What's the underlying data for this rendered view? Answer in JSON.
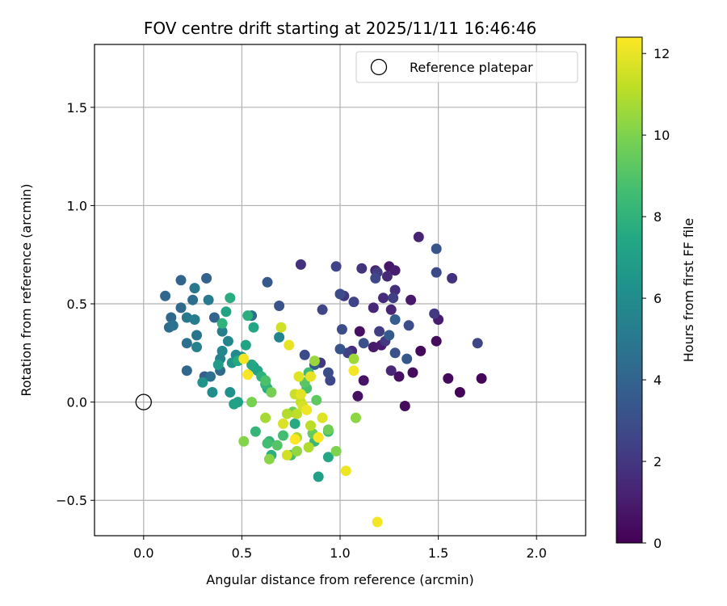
{
  "chart_data": {
    "type": "scatter",
    "title": "FOV centre drift starting at 2025/11/11 16:46:46",
    "xlabel": "Angular distance from reference (arcmin)",
    "ylabel": "Rotation from reference (arcmin)",
    "xlim": [
      -0.25,
      2.25
    ],
    "ylim": [
      -0.68,
      1.82
    ],
    "xticks": [
      0.0,
      0.5,
      1.0,
      1.5,
      2.0
    ],
    "xtick_labels": [
      "0.0",
      "0.5",
      "1.0",
      "1.5",
      "2.0"
    ],
    "yticks": [
      -0.5,
      0.0,
      0.5,
      1.0,
      1.5
    ],
    "ytick_labels": [
      "−0.5",
      "0.0",
      "0.5",
      "1.0",
      "1.5"
    ],
    "grid": true,
    "colorbar": {
      "label": "Hours from first FF file",
      "range": [
        0,
        12.4
      ],
      "colormap": "viridis",
      "ticks": [
        0,
        2,
        4,
        6,
        8,
        10,
        12
      ],
      "tick_labels": [
        "0",
        "2",
        "4",
        "6",
        "8",
        "10",
        "12"
      ]
    },
    "legend": {
      "placement": "top-right",
      "entries": [
        {
          "label": "Reference platepar",
          "marker": "open-circle"
        }
      ]
    },
    "reference": {
      "x": 0.0,
      "y": 0.0
    },
    "points": [
      [
        1.72,
        0.12,
        0.2
      ],
      [
        1.61,
        0.05,
        0.1
      ],
      [
        1.55,
        0.12,
        0.3
      ],
      [
        1.33,
        -0.02,
        0.4
      ],
      [
        1.41,
        0.26,
        0.3
      ],
      [
        1.37,
        0.15,
        0.4
      ],
      [
        1.3,
        0.13,
        0.5
      ],
      [
        1.49,
        0.31,
        0.4
      ],
      [
        1.1,
        0.36,
        0.5
      ],
      [
        1.09,
        0.03,
        0.6
      ],
      [
        1.12,
        0.11,
        0.7
      ],
      [
        1.25,
        0.69,
        0.8
      ],
      [
        1.36,
        0.52,
        0.8
      ],
      [
        1.17,
        0.28,
        0.9
      ],
      [
        1.5,
        0.42,
        1.0
      ],
      [
        1.21,
        0.29,
        1.0
      ],
      [
        1.28,
        0.67,
        1.1
      ],
      [
        1.4,
        0.84,
        1.2
      ],
      [
        1.18,
        0.67,
        1.2
      ],
      [
        1.26,
        0.47,
        1.3
      ],
      [
        1.26,
        0.16,
        1.4
      ],
      [
        1.17,
        0.48,
        1.4
      ],
      [
        1.24,
        0.64,
        1.5
      ],
      [
        1.06,
        0.26,
        1.6
      ],
      [
        1.22,
        0.53,
        1.6
      ],
      [
        1.28,
        0.57,
        1.7
      ],
      [
        0.8,
        0.7,
        1.8
      ],
      [
        1.57,
        0.63,
        1.8
      ],
      [
        1.11,
        0.68,
        1.9
      ],
      [
        1.02,
        0.54,
        2.0
      ],
      [
        0.9,
        0.2,
        2.0
      ],
      [
        1.23,
        0.31,
        2.1
      ],
      [
        1.48,
        0.45,
        2.1
      ],
      [
        1.19,
        0.66,
        2.2
      ],
      [
        1.2,
        0.36,
        2.3
      ],
      [
        1.27,
        0.53,
        2.3
      ],
      [
        1.04,
        0.25,
        2.4
      ],
      [
        0.98,
        0.69,
        2.5
      ],
      [
        1.07,
        0.51,
        2.5
      ],
      [
        1.7,
        0.3,
        2.6
      ],
      [
        0.91,
        0.47,
        2.6
      ],
      [
        1.18,
        0.63,
        2.7
      ],
      [
        0.95,
        0.11,
        2.7
      ],
      [
        1.49,
        0.66,
        2.8
      ],
      [
        0.82,
        0.24,
        2.8
      ],
      [
        1.0,
        0.55,
        2.9
      ],
      [
        1.01,
        0.37,
        2.9
      ],
      [
        1.35,
        0.39,
        3.0
      ],
      [
        0.94,
        0.15,
        3.0
      ],
      [
        1.12,
        0.3,
        3.1
      ],
      [
        1.28,
        0.25,
        3.1
      ],
      [
        0.69,
        0.49,
        3.2
      ],
      [
        1.49,
        0.78,
        3.3
      ],
      [
        1.0,
        0.27,
        3.3
      ],
      [
        1.34,
        0.22,
        3.4
      ],
      [
        0.63,
        0.61,
        3.5
      ],
      [
        1.25,
        0.34,
        3.6
      ],
      [
        0.87,
        0.19,
        3.6
      ],
      [
        1.28,
        0.42,
        3.7
      ],
      [
        0.31,
        0.13,
        3.8
      ],
      [
        0.32,
        0.63,
        3.9
      ],
      [
        0.19,
        0.62,
        4.0
      ],
      [
        0.36,
        0.43,
        4.0
      ],
      [
        0.11,
        0.54,
        4.1
      ],
      [
        0.22,
        0.16,
        4.1
      ],
      [
        0.14,
        0.43,
        4.2
      ],
      [
        0.39,
        0.16,
        4.3
      ],
      [
        0.19,
        0.48,
        4.3
      ],
      [
        0.13,
        0.38,
        4.4
      ],
      [
        0.55,
        0.44,
        4.5
      ],
      [
        0.25,
        0.52,
        4.5
      ],
      [
        0.34,
        0.13,
        4.6
      ],
      [
        0.22,
        0.3,
        4.6
      ],
      [
        0.15,
        0.39,
        4.7
      ],
      [
        0.27,
        0.34,
        4.8
      ],
      [
        0.26,
        0.58,
        4.9
      ],
      [
        0.22,
        0.43,
        5.0
      ],
      [
        0.33,
        0.52,
        5.1
      ],
      [
        0.26,
        0.42,
        5.2
      ],
      [
        0.4,
        0.36,
        5.3
      ],
      [
        0.27,
        0.28,
        5.4
      ],
      [
        0.39,
        0.22,
        5.5
      ],
      [
        0.69,
        0.33,
        5.6
      ],
      [
        0.43,
        0.31,
        5.7
      ],
      [
        0.4,
        0.26,
        5.8
      ],
      [
        0.47,
        0.24,
        5.9
      ],
      [
        0.35,
        0.05,
        6.0
      ],
      [
        0.5,
        0.23,
        6.1
      ],
      [
        0.44,
        0.05,
        6.3
      ],
      [
        0.3,
        0.1,
        6.4
      ],
      [
        0.45,
        0.2,
        6.5
      ],
      [
        0.56,
        0.18,
        6.6
      ],
      [
        0.38,
        0.19,
        6.8
      ],
      [
        0.46,
        -0.01,
        7.0
      ],
      [
        0.89,
        -0.38,
        7.0
      ],
      [
        0.48,
        0.0,
        7.1
      ],
      [
        0.52,
        0.29,
        7.2
      ],
      [
        0.42,
        0.46,
        7.3
      ],
      [
        0.58,
        0.16,
        7.3
      ],
      [
        0.55,
        0.19,
        7.4
      ],
      [
        0.56,
        0.38,
        7.4
      ],
      [
        0.63,
        0.07,
        7.5
      ],
      [
        0.94,
        -0.28,
        7.5
      ],
      [
        0.48,
        0.21,
        7.6
      ],
      [
        0.77,
        -0.11,
        7.6
      ],
      [
        0.44,
        0.53,
        7.7
      ],
      [
        0.65,
        -0.27,
        7.8
      ],
      [
        0.53,
        0.44,
        7.8
      ],
      [
        0.6,
        0.13,
        7.9
      ],
      [
        0.4,
        0.4,
        8.0
      ],
      [
        0.64,
        -0.2,
        8.1
      ],
      [
        0.62,
        0.09,
        8.1
      ],
      [
        0.57,
        -0.15,
        8.2
      ],
      [
        0.87,
        -0.2,
        8.3
      ],
      [
        0.94,
        -0.15,
        8.4
      ],
      [
        0.84,
        0.15,
        8.5
      ],
      [
        0.63,
        -0.21,
        8.6
      ],
      [
        0.71,
        -0.17,
        8.6
      ],
      [
        0.75,
        -0.27,
        8.7
      ],
      [
        0.83,
        0.07,
        8.8
      ],
      [
        0.62,
        0.11,
        8.9
      ],
      [
        0.68,
        -0.22,
        9.1
      ],
      [
        0.82,
        0.1,
        9.2
      ],
      [
        0.88,
        0.01,
        9.3
      ],
      [
        0.86,
        -0.16,
        9.5
      ],
      [
        0.76,
        -0.05,
        9.6
      ],
      [
        0.94,
        -0.14,
        9.7
      ],
      [
        0.65,
        0.05,
        9.8
      ],
      [
        0.55,
        0.0,
        9.9
      ],
      [
        0.98,
        -0.25,
        10.0
      ],
      [
        0.51,
        -0.2,
        10.1
      ],
      [
        0.64,
        -0.29,
        10.2
      ],
      [
        1.08,
        -0.08,
        10.3
      ],
      [
        0.78,
        -0.25,
        10.4
      ],
      [
        0.87,
        0.21,
        10.5
      ],
      [
        1.07,
        0.22,
        10.6
      ],
      [
        0.62,
        -0.08,
        10.7
      ],
      [
        0.78,
        -0.18,
        10.8
      ],
      [
        0.84,
        -0.23,
        10.9
      ],
      [
        0.73,
        -0.06,
        11.0
      ],
      [
        0.85,
        -0.12,
        11.1
      ],
      [
        0.78,
        -0.06,
        11.2
      ],
      [
        0.8,
        0.0,
        11.3
      ],
      [
        0.77,
        0.04,
        11.4
      ],
      [
        0.7,
        0.38,
        11.5
      ],
      [
        0.73,
        -0.27,
        11.5
      ],
      [
        0.81,
        -0.02,
        11.6
      ],
      [
        0.71,
        -0.11,
        11.7
      ],
      [
        0.79,
        0.13,
        11.8
      ],
      [
        0.91,
        -0.08,
        11.8
      ],
      [
        0.8,
        0.04,
        11.9
      ],
      [
        0.85,
        0.13,
        12.0
      ],
      [
        0.74,
        0.29,
        12.0
      ],
      [
        1.03,
        -0.35,
        12.1
      ],
      [
        0.83,
        -0.04,
        12.1
      ],
      [
        0.51,
        0.22,
        12.2
      ],
      [
        1.07,
        0.16,
        12.2
      ],
      [
        0.53,
        0.14,
        12.3
      ],
      [
        0.89,
        -0.18,
        12.3
      ],
      [
        0.77,
        -0.19,
        12.4
      ],
      [
        1.19,
        -0.61,
        12.2
      ]
    ]
  }
}
